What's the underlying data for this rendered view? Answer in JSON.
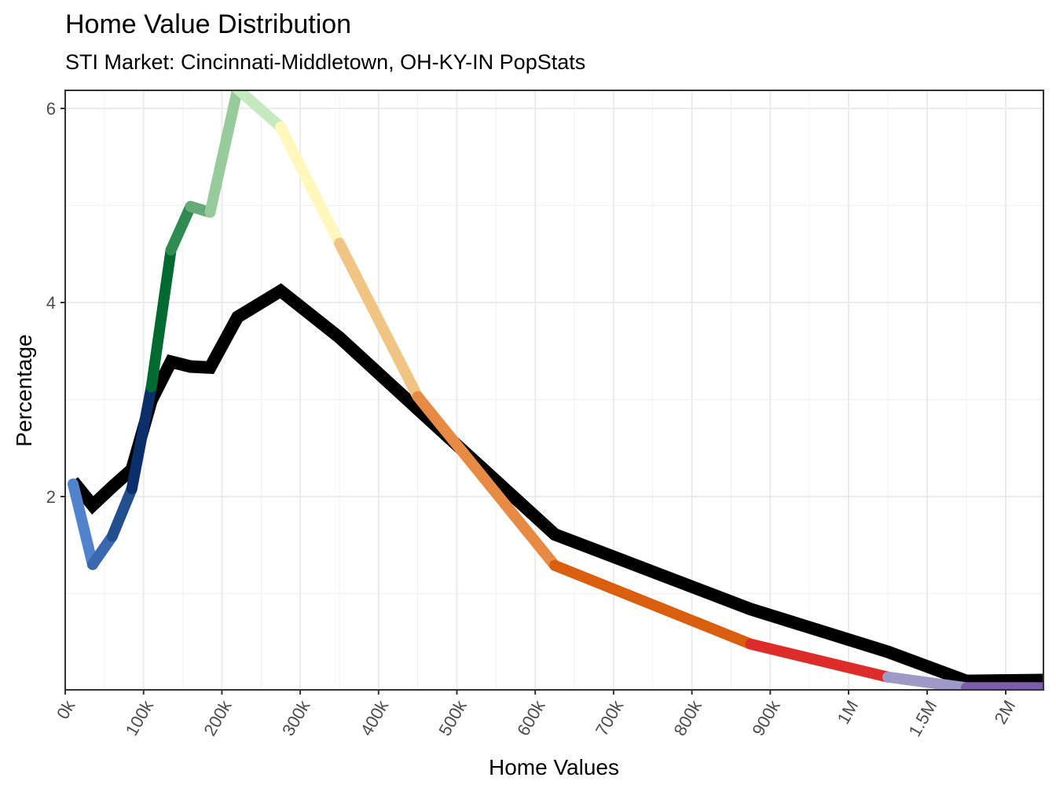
{
  "chart_data": {
    "type": "line",
    "title": "Home Value Distribution",
    "subtitle": "STI Market: Cincinnati-Middletown, OH-KY-IN PopStats",
    "xlabel": "Home Values",
    "ylabel": "Percentage",
    "x_ticks": [
      {
        "value": 0,
        "label": "0k"
      },
      {
        "value": 100000,
        "label": "100k"
      },
      {
        "value": 200000,
        "label": "200k"
      },
      {
        "value": 300000,
        "label": "300k"
      },
      {
        "value": 400000,
        "label": "400k"
      },
      {
        "value": 500000,
        "label": "500k"
      },
      {
        "value": 600000,
        "label": "600k"
      },
      {
        "value": 700000,
        "label": "700k"
      },
      {
        "value": 800000,
        "label": "800k"
      },
      {
        "value": 900000,
        "label": "900k"
      },
      {
        "value": 1000000,
        "label": "1M"
      },
      {
        "value": 1500000,
        "label": "1.5M"
      },
      {
        "value": 2000000,
        "label": "2M"
      }
    ],
    "y_ticks": [
      {
        "value": 2,
        "label": "2"
      },
      {
        "value": 4,
        "label": "4"
      },
      {
        "value": 6,
        "label": "6"
      }
    ],
    "xlim": [
      0,
      2240000
    ],
    "ylim": [
      0,
      6.2
    ],
    "grid": true,
    "x": [
      10000,
      35000,
      60000,
      85000,
      110000,
      135000,
      160000,
      185000,
      220000,
      275000,
      350000,
      450000,
      625000,
      875000,
      1250000,
      1750000,
      2250000
    ],
    "series": [
      {
        "values": [
          2.13,
          1.3,
          1.59,
          2.08,
          3.13,
          4.54,
          4.99,
          4.93,
          6.2,
          5.81,
          4.61,
          3.03,
          1.29,
          0.48,
          0.14,
          0.03,
          0.03
        ],
        "segment_colors": [
          "#5083cc",
          "#3a67ae",
          "#234f8f",
          "#0b2f6b",
          "#006a31",
          "#2f8b50",
          "#66ab77",
          "#98cb9c",
          "#c7e9c0",
          "#fff7bc",
          "#f0c584",
          "#e68a44",
          "#d95f0e",
          "#dd2c2a",
          "#9e9ac8",
          "#7b5ea7"
        ]
      },
      {
        "values": [
          2.16,
          1.91,
          2.1,
          2.28,
          2.99,
          3.39,
          3.34,
          3.33,
          3.85,
          4.12,
          3.64,
          2.9,
          1.61,
          0.84,
          0.4,
          0.1,
          0.11
        ],
        "color": "#000000"
      }
    ]
  }
}
